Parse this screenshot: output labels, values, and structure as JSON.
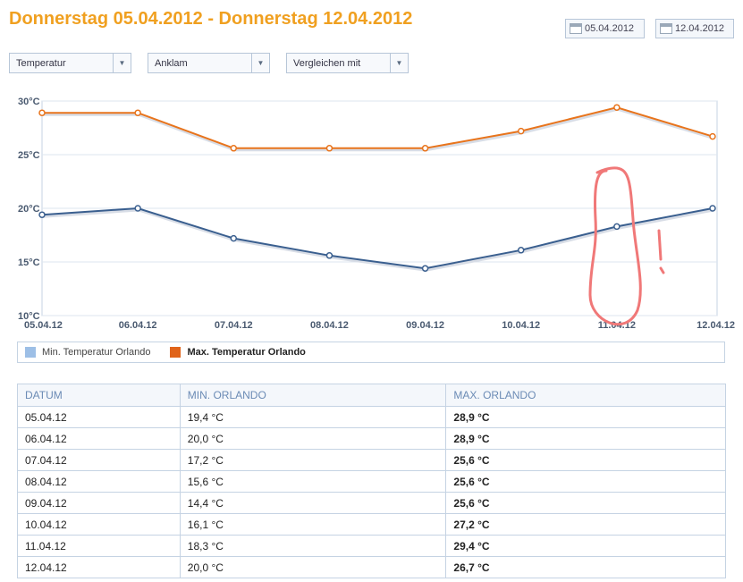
{
  "header": {
    "title": "Donnerstag 05.04.2012 - Donnerstag 12.04.2012"
  },
  "date_range": {
    "start_label": "05.04.2012",
    "end_label": "12.04.2012"
  },
  "filters": {
    "metric": "Temperatur",
    "location": "Anklam",
    "compare": "Vergleichen mit"
  },
  "chart_data": {
    "type": "line",
    "categories": [
      "05.04.12",
      "06.04.12",
      "07.04.12",
      "08.04.12",
      "09.04.12",
      "10.04.12",
      "11.04.12",
      "12.04.12"
    ],
    "y_ticks": [
      "30°C",
      "25°C",
      "20°C",
      "15°C",
      "10°C"
    ],
    "ylim": [
      10,
      30
    ],
    "grid": true,
    "series": [
      {
        "name": "Min. Temperatur Orlando",
        "color": "#3a5f8f",
        "legend_color": "#9dbfe6",
        "values": [
          19.4,
          20.0,
          17.2,
          15.6,
          14.4,
          16.1,
          18.3,
          20.0
        ]
      },
      {
        "name": "Max. Temperatur Orlando",
        "color": "#e8741c",
        "legend_color": "#e0641a",
        "values": [
          28.9,
          28.9,
          25.6,
          25.6,
          25.6,
          27.2,
          29.4,
          26.7
        ]
      }
    ],
    "annotation": {
      "type": "hand-drawn circle around 11.04.12 with exclamation mark",
      "color": "#f07878"
    }
  },
  "legend": {
    "min_label": "Min. Temperatur Orlando",
    "max_label": "Max. Temperatur Orlando"
  },
  "table": {
    "headers": [
      "DATUM",
      "MIN. ORLANDO",
      "MAX. ORLANDO"
    ],
    "rows": [
      [
        "05.04.12",
        "19,4 °C",
        "28,9 °C"
      ],
      [
        "06.04.12",
        "20,0 °C",
        "28,9 °C"
      ],
      [
        "07.04.12",
        "17,2 °C",
        "25,6 °C"
      ],
      [
        "08.04.12",
        "15,6 °C",
        "25,6 °C"
      ],
      [
        "09.04.12",
        "14,4 °C",
        "25,6 °C"
      ],
      [
        "10.04.12",
        "16,1 °C",
        "27,2 °C"
      ],
      [
        "11.04.12",
        "18,3 °C",
        "29,4 °C"
      ],
      [
        "12.04.12",
        "20,0 °C",
        "26,7 °C"
      ]
    ]
  }
}
